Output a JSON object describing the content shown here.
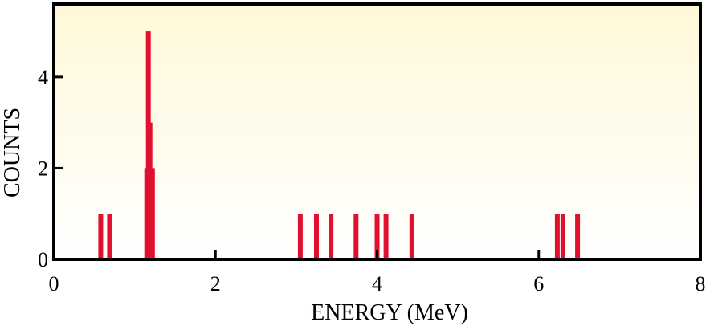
{
  "chart_data": {
    "type": "bar",
    "xlabel": "ENERGY (MeV)",
    "ylabel": "COUNTS",
    "xlim": [
      0,
      8
    ],
    "ylim": [
      0,
      5.6
    ],
    "xticks": [
      "0",
      "2",
      "4",
      "6",
      "8"
    ],
    "yticks": [
      "0",
      "2",
      "4"
    ],
    "grid": false,
    "colors": {
      "bar": "#e0102e",
      "plot_bg_top": "#fff8d8",
      "plot_bg_bottom": "#ffffff"
    },
    "bars": [
      {
        "x": 0.58,
        "count": 1
      },
      {
        "x": 0.69,
        "count": 1
      },
      {
        "x": 1.15,
        "count": 2
      },
      {
        "x": 1.17,
        "count": 5
      },
      {
        "x": 1.19,
        "count": 3
      },
      {
        "x": 1.22,
        "count": 2
      },
      {
        "x": 3.05,
        "count": 1
      },
      {
        "x": 3.25,
        "count": 1
      },
      {
        "x": 3.43,
        "count": 1
      },
      {
        "x": 3.74,
        "count": 1
      },
      {
        "x": 4.0,
        "count": 1
      },
      {
        "x": 4.11,
        "count": 1
      },
      {
        "x": 4.43,
        "count": 1
      },
      {
        "x": 6.23,
        "count": 1
      },
      {
        "x": 6.3,
        "count": 1
      },
      {
        "x": 6.48,
        "count": 1
      }
    ]
  }
}
